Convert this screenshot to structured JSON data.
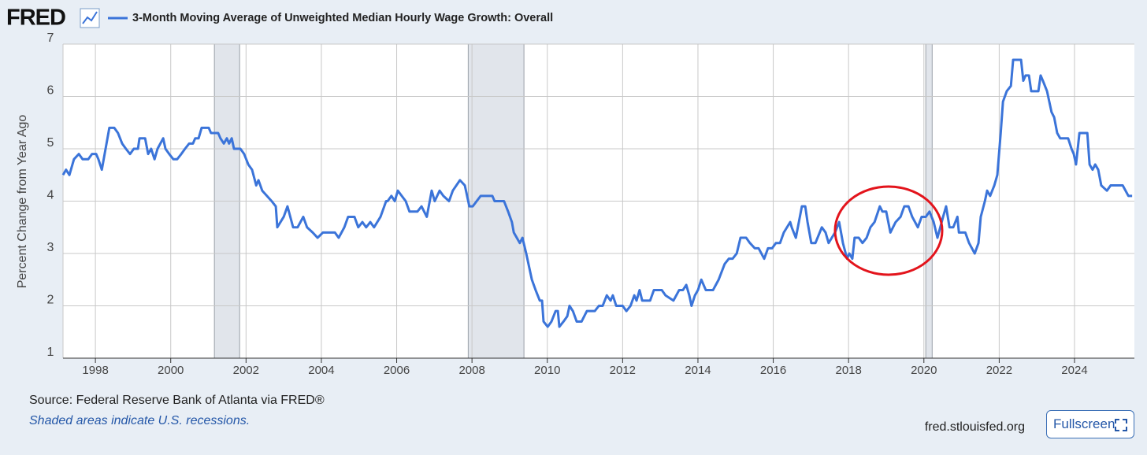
{
  "chart_data": {
    "type": "line",
    "logo": "FRED",
    "title": "3-Month Moving Average of Unweighted Median Hourly Wage Growth: Overall",
    "ylabel": "Percent Change from Year Ago",
    "source": "Source: Federal Reserve Bank of Atlanta via FRED®",
    "note": "Shaded areas indicate U.S. recessions.",
    "site": "fred.stlouisfed.org",
    "button": "Fullscreen",
    "xlim": [
      1997.14,
      2025.59
    ],
    "xticks": [
      1998,
      2000,
      2002,
      2004,
      2006,
      2008,
      2010,
      2012,
      2014,
      2016,
      2018,
      2020,
      2022,
      2024
    ],
    "ylim": [
      1,
      7
    ],
    "yticks": [
      1,
      2,
      3,
      4,
      5,
      6,
      7
    ],
    "grid": true,
    "recessions": [
      [
        2001.16,
        2001.83
      ],
      [
        2007.9,
        2009.38
      ],
      [
        2020.05,
        2020.22
      ]
    ],
    "series": [
      {
        "name": "3-Month Moving Average of Unweighted Median Hourly Wage Growth: Overall",
        "color": "#3b74d9",
        "x": [
          1997.14,
          1997.22,
          1997.31,
          1997.43,
          1997.56,
          1997.66,
          1997.81,
          1997.91,
          1998.02,
          1998.08,
          1998.17,
          1998.27,
          1998.37,
          1998.5,
          1998.6,
          1998.71,
          1998.81,
          1998.92,
          1999.02,
          1999.13,
          1999.17,
          1999.32,
          1999.4,
          1999.48,
          1999.57,
          1999.65,
          1999.8,
          1999.86,
          1999.96,
          2000.07,
          2000.17,
          2000.28,
          2000.38,
          2000.49,
          2000.59,
          2000.65,
          2000.74,
          2000.82,
          2001.01,
          2001.07,
          2001.26,
          2001.32,
          2001.41,
          2001.49,
          2001.55,
          2001.62,
          2001.68,
          2001.85,
          2001.95,
          2002.06,
          2002.16,
          2002.27,
          2002.33,
          2002.43,
          2002.68,
          2002.79,
          2002.83,
          2003.0,
          2003.1,
          2003.25,
          2003.37,
          2003.52,
          2003.62,
          2003.77,
          2003.9,
          2004.04,
          2004.36,
          2004.46,
          2004.61,
          2004.71,
          2004.88,
          2004.98,
          2005.09,
          2005.19,
          2005.3,
          2005.4,
          2005.57,
          2005.72,
          2005.76,
          2005.86,
          2005.95,
          2006.03,
          2006.24,
          2006.34,
          2006.55,
          2006.66,
          2006.8,
          2006.93,
          2007.01,
          2007.14,
          2007.24,
          2007.39,
          2007.49,
          2007.68,
          2007.81,
          2007.93,
          2008.02,
          2008.23,
          2008.54,
          2008.6,
          2008.85,
          2008.96,
          2009.06,
          2009.11,
          2009.27,
          2009.34,
          2009.44,
          2009.59,
          2009.69,
          2009.8,
          2009.86,
          2009.9,
          2010.01,
          2010.11,
          2010.22,
          2010.28,
          2010.32,
          2010.43,
          2010.53,
          2010.59,
          2010.68,
          2010.78,
          2010.91,
          2011.05,
          2011.26,
          2011.37,
          2011.47,
          2011.58,
          2011.68,
          2011.74,
          2011.83,
          2012.0,
          2012.1,
          2012.21,
          2012.31,
          2012.37,
          2012.45,
          2012.52,
          2012.73,
          2012.83,
          2013.04,
          2013.14,
          2013.35,
          2013.5,
          2013.6,
          2013.69,
          2013.77,
          2013.83,
          2013.92,
          2014.0,
          2014.09,
          2014.21,
          2014.4,
          2014.55,
          2014.71,
          2014.82,
          2014.92,
          2015.03,
          2015.13,
          2015.28,
          2015.38,
          2015.51,
          2015.61,
          2015.76,
          2015.86,
          2015.97,
          2016.07,
          2016.18,
          2016.28,
          2016.45,
          2016.49,
          2016.6,
          2016.76,
          2016.85,
          2016.91,
          2017.01,
          2017.12,
          2017.29,
          2017.39,
          2017.47,
          2017.64,
          2017.75,
          2017.85,
          2017.96,
          2018.02,
          2018.1,
          2018.16,
          2018.27,
          2018.37,
          2018.48,
          2018.58,
          2018.69,
          2018.83,
          2018.9,
          2019.0,
          2019.11,
          2019.25,
          2019.38,
          2019.48,
          2019.59,
          2019.69,
          2019.84,
          2019.94,
          2020.05,
          2020.15,
          2020.26,
          2020.36,
          2020.51,
          2020.59,
          2020.68,
          2020.78,
          2020.89,
          2020.93,
          2021.1,
          2021.2,
          2021.35,
          2021.45,
          2021.51,
          2021.62,
          2021.68,
          2021.76,
          2021.87,
          2021.95,
          2022.04,
          2022.1,
          2022.2,
          2022.31,
          2022.37,
          2022.58,
          2022.64,
          2022.7,
          2022.79,
          2022.85,
          2023.04,
          2023.1,
          2023.16,
          2023.27,
          2023.39,
          2023.46,
          2023.54,
          2023.62,
          2023.83,
          2023.92,
          2023.98,
          2024.04,
          2024.13,
          2024.34,
          2024.4,
          2024.48,
          2024.55,
          2024.63,
          2024.71,
          2024.86,
          2024.96,
          2025.28,
          2025.43,
          2025.53
        ],
        "values": [
          4.5,
          4.6,
          4.5,
          4.8,
          4.9,
          4.8,
          4.8,
          4.9,
          4.9,
          4.8,
          4.6,
          5.0,
          5.4,
          5.4,
          5.3,
          5.1,
          5.0,
          4.9,
          5.0,
          5.0,
          5.2,
          5.2,
          4.9,
          5.0,
          4.8,
          5.0,
          5.2,
          5.0,
          4.9,
          4.8,
          4.8,
          4.9,
          5.0,
          5.1,
          5.1,
          5.2,
          5.2,
          5.4,
          5.4,
          5.3,
          5.3,
          5.2,
          5.1,
          5.2,
          5.1,
          5.2,
          5.0,
          5.0,
          4.9,
          4.7,
          4.6,
          4.3,
          4.4,
          4.2,
          4.0,
          3.9,
          3.5,
          3.7,
          3.9,
          3.5,
          3.5,
          3.7,
          3.5,
          3.4,
          3.3,
          3.4,
          3.4,
          3.3,
          3.5,
          3.7,
          3.7,
          3.5,
          3.6,
          3.5,
          3.6,
          3.5,
          3.7,
          4.0,
          4.0,
          4.1,
          4.0,
          4.2,
          4.0,
          3.8,
          3.8,
          3.9,
          3.7,
          4.2,
          4.0,
          4.2,
          4.1,
          4.0,
          4.2,
          4.4,
          4.3,
          3.9,
          3.9,
          4.1,
          4.1,
          4.0,
          4.0,
          3.8,
          3.6,
          3.4,
          3.2,
          3.3,
          3.0,
          2.5,
          2.3,
          2.1,
          2.1,
          1.7,
          1.6,
          1.7,
          1.9,
          1.9,
          1.6,
          1.7,
          1.8,
          2.0,
          1.9,
          1.7,
          1.7,
          1.9,
          1.9,
          2.0,
          2.0,
          2.2,
          2.1,
          2.2,
          2.0,
          2.0,
          1.9,
          2.0,
          2.2,
          2.1,
          2.3,
          2.1,
          2.1,
          2.3,
          2.3,
          2.2,
          2.1,
          2.3,
          2.3,
          2.4,
          2.2,
          2.0,
          2.2,
          2.3,
          2.5,
          2.3,
          2.3,
          2.5,
          2.8,
          2.9,
          2.9,
          3.0,
          3.3,
          3.3,
          3.2,
          3.1,
          3.1,
          2.9,
          3.1,
          3.1,
          3.2,
          3.2,
          3.4,
          3.6,
          3.5,
          3.3,
          3.9,
          3.9,
          3.6,
          3.2,
          3.2,
          3.5,
          3.4,
          3.2,
          3.4,
          3.6,
          3.2,
          2.9,
          3.0,
          2.9,
          3.3,
          3.3,
          3.2,
          3.3,
          3.5,
          3.6,
          3.9,
          3.8,
          3.8,
          3.4,
          3.6,
          3.7,
          3.9,
          3.9,
          3.7,
          3.5,
          3.7,
          3.7,
          3.8,
          3.6,
          3.3,
          3.7,
          3.9,
          3.5,
          3.5,
          3.7,
          3.4,
          3.4,
          3.2,
          3.0,
          3.2,
          3.7,
          4.0,
          4.2,
          4.1,
          4.3,
          4.5,
          5.3,
          5.9,
          6.1,
          6.2,
          6.7,
          6.7,
          6.3,
          6.4,
          6.4,
          6.1,
          6.1,
          6.4,
          6.3,
          6.1,
          5.7,
          5.6,
          5.3,
          5.2,
          5.2,
          5.0,
          4.9,
          4.7,
          5.3,
          5.3,
          4.7,
          4.6,
          4.7,
          4.6,
          4.3,
          4.2,
          4.3,
          4.3,
          4.1,
          4.1
        ]
      }
    ]
  }
}
